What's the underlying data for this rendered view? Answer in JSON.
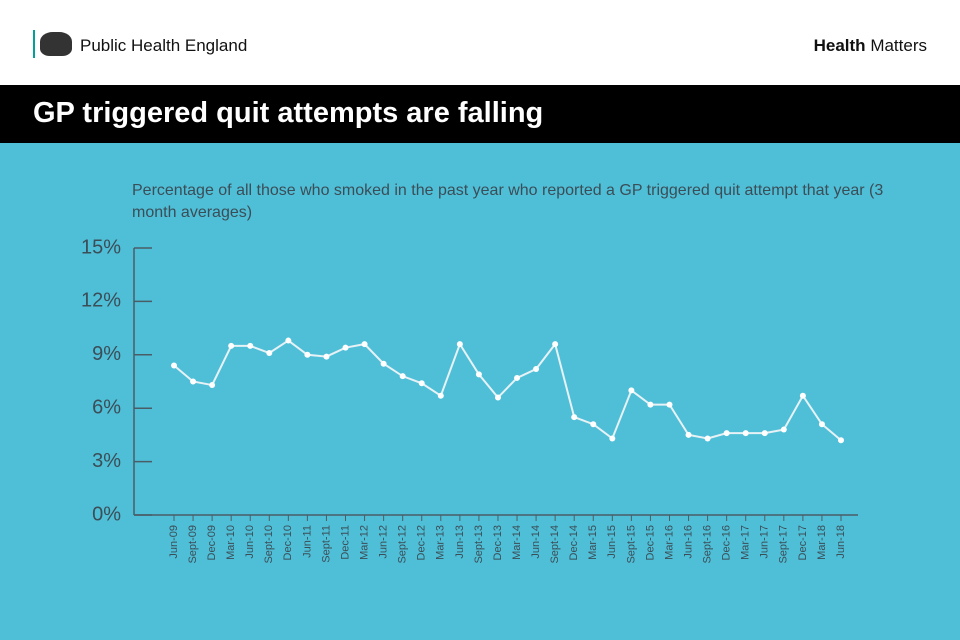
{
  "header": {
    "organisation": "Public Health England",
    "brand_bold": "Health",
    "brand_rest": "Matters"
  },
  "chart_data": {
    "type": "line",
    "title": "GP triggered quit attempts are falling",
    "subtitle": "Percentage of all those who smoked in the past year who reported a GP triggered quit attempt that year (3 month averages)",
    "categories": [
      "Jun-09",
      "Sept-09",
      "Dec-09",
      "Mar-10",
      "Jun-10",
      "Sept-10",
      "Dec-10",
      "Jun-11",
      "Sept-11",
      "Dec-11",
      "Mar-12",
      "Jun-12",
      "Sept-12",
      "Dec-12",
      "Mar-13",
      "Jun-13",
      "Sept-13",
      "Dec-13",
      "Mar-14",
      "Jun-14",
      "Sept-14",
      "Dec-14",
      "Mar-15",
      "Jun-15",
      "Sept-15",
      "Dec-15",
      "Mar-16",
      "Jun-16",
      "Sept-16",
      "Dec-16",
      "Mar-17",
      "Jun-17",
      "Sept-17",
      "Dec-17",
      "Mar-18",
      "Jun-18"
    ],
    "values": [
      8.4,
      7.5,
      7.3,
      9.5,
      9.5,
      9.1,
      9.8,
      9.0,
      8.9,
      9.4,
      9.6,
      8.5,
      7.8,
      7.4,
      6.7,
      9.6,
      7.9,
      6.6,
      7.7,
      8.2,
      9.6,
      5.5,
      5.1,
      4.3,
      7.0,
      6.2,
      6.2,
      4.5,
      4.3,
      4.6,
      4.6,
      4.6,
      4.8,
      6.7,
      5.1,
      4.2
    ],
    "color": "#e6f2f5",
    "ylim": [
      0,
      15
    ],
    "yticks": [
      {
        "value": 0,
        "label": "0%"
      },
      {
        "value": 3,
        "label": "3%"
      },
      {
        "value": 6,
        "label": "6%"
      },
      {
        "value": 9,
        "label": "9%"
      },
      {
        "value": 12,
        "label": "12%"
      },
      {
        "value": 15,
        "label": "15%"
      }
    ]
  }
}
